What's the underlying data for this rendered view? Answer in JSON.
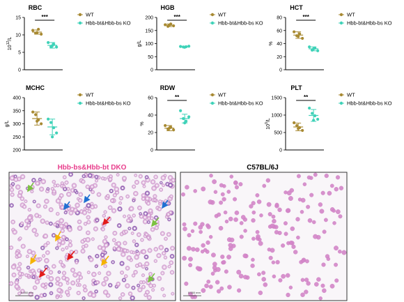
{
  "colors": {
    "wt": "#a88a33",
    "ko": "#3fd2b8",
    "dko_title": "#e83e8c",
    "ctrl_title": "#000000",
    "arrow_green": "#7cc142",
    "arrow_blue": "#1f6fd1",
    "arrow_red": "#e21b1b",
    "arrow_orange": "#f5b300"
  },
  "legend": {
    "wt": "WT",
    "ko": "Hbb-bt&Hbb-bs KO"
  },
  "chart_data": [
    {
      "type": "scatter",
      "title": "RBC",
      "ylabel": "10^12/L",
      "ylim": [
        0,
        15
      ],
      "yticks": [
        "0",
        "5",
        "10",
        "15"
      ],
      "sig": "***",
      "series": [
        {
          "name": "WT",
          "mean": 10.8,
          "sd": 0.6,
          "values": [
            11.3,
            10.5,
            11.6,
            10.2,
            10.6
          ]
        },
        {
          "name": "Hbb-bt&Hbb-bs KO",
          "mean": 7.0,
          "sd": 0.8,
          "values": [
            7.8,
            6.6,
            7.3,
            6.5,
            6.9
          ]
        }
      ]
    },
    {
      "type": "scatter",
      "title": "HGB",
      "ylabel": "g/L",
      "ylim": [
        0,
        200
      ],
      "yticks": [
        "0",
        "50",
        "100",
        "150",
        "200"
      ],
      "sig": "***",
      "series": [
        {
          "name": "WT",
          "mean": 170,
          "sd": 5,
          "values": [
            172,
            166,
            175,
            168,
            171
          ]
        },
        {
          "name": "Hbb-bt&Hbb-bs KO",
          "mean": 88,
          "sd": 2,
          "values": [
            89,
            87,
            88,
            90,
            86
          ]
        }
      ]
    },
    {
      "type": "scatter",
      "title": "HCT",
      "ylabel": "%",
      "ylim": [
        0,
        80
      ],
      "yticks": [
        "0",
        "20",
        "40",
        "60",
        "80"
      ],
      "sig": "***",
      "series": [
        {
          "name": "WT",
          "mean": 53,
          "sd": 5,
          "values": [
            58,
            52,
            55,
            48,
            51
          ]
        },
        {
          "name": "Hbb-bt&Hbb-bs KO",
          "mean": 32,
          "sd": 3,
          "values": [
            35,
            30,
            33,
            29,
            32
          ]
        }
      ]
    },
    {
      "type": "scatter",
      "title": "MCHC",
      "ylabel": "g/L",
      "ylim": [
        200,
        400
      ],
      "yticks": [
        "200",
        "250",
        "300",
        "350",
        "400"
      ],
      "sig": "",
      "series": [
        {
          "name": "WT",
          "mean": 320,
          "sd": 25,
          "values": [
            345,
            335,
            315,
            300,
            310
          ]
        },
        {
          "name": "Hbb-bt&Hbb-bs KO",
          "mean": 288,
          "sd": 30,
          "values": [
            318,
            305,
            285,
            265,
            250
          ]
        }
      ]
    },
    {
      "type": "scatter",
      "title": "RDW",
      "ylabel": "%",
      "ylim": [
        0,
        60
      ],
      "yticks": [
        "0",
        "20",
        "40",
        "60"
      ],
      "sig": "**",
      "series": [
        {
          "name": "WT",
          "mean": 25,
          "sd": 3,
          "values": [
            28,
            24,
            26,
            23,
            25
          ]
        },
        {
          "name": "Hbb-bt&Hbb-bs KO",
          "mean": 36,
          "sd": 5,
          "values": [
            45,
            36,
            33,
            38,
            31
          ]
        }
      ]
    },
    {
      "type": "scatter",
      "title": "PLT",
      "ylabel": "10^9/L",
      "ylim": [
        0,
        1500
      ],
      "yticks": [
        "0",
        "500",
        "1000",
        "1500"
      ],
      "sig": "**",
      "series": [
        {
          "name": "WT",
          "mean": 660,
          "sd": 110,
          "values": [
            780,
            700,
            640,
            560,
            610
          ]
        },
        {
          "name": "Hbb-bt&Hbb-bs KO",
          "mean": 990,
          "sd": 170,
          "values": [
            1200,
            1050,
            980,
            880,
            850
          ]
        }
      ]
    }
  ],
  "smears": [
    {
      "title": "Hbb-bs&Hbb-bt DKO",
      "scale_label": "0.050 mm"
    },
    {
      "title": "C57BL/6J",
      "scale_label": "0.050 mm"
    }
  ]
}
